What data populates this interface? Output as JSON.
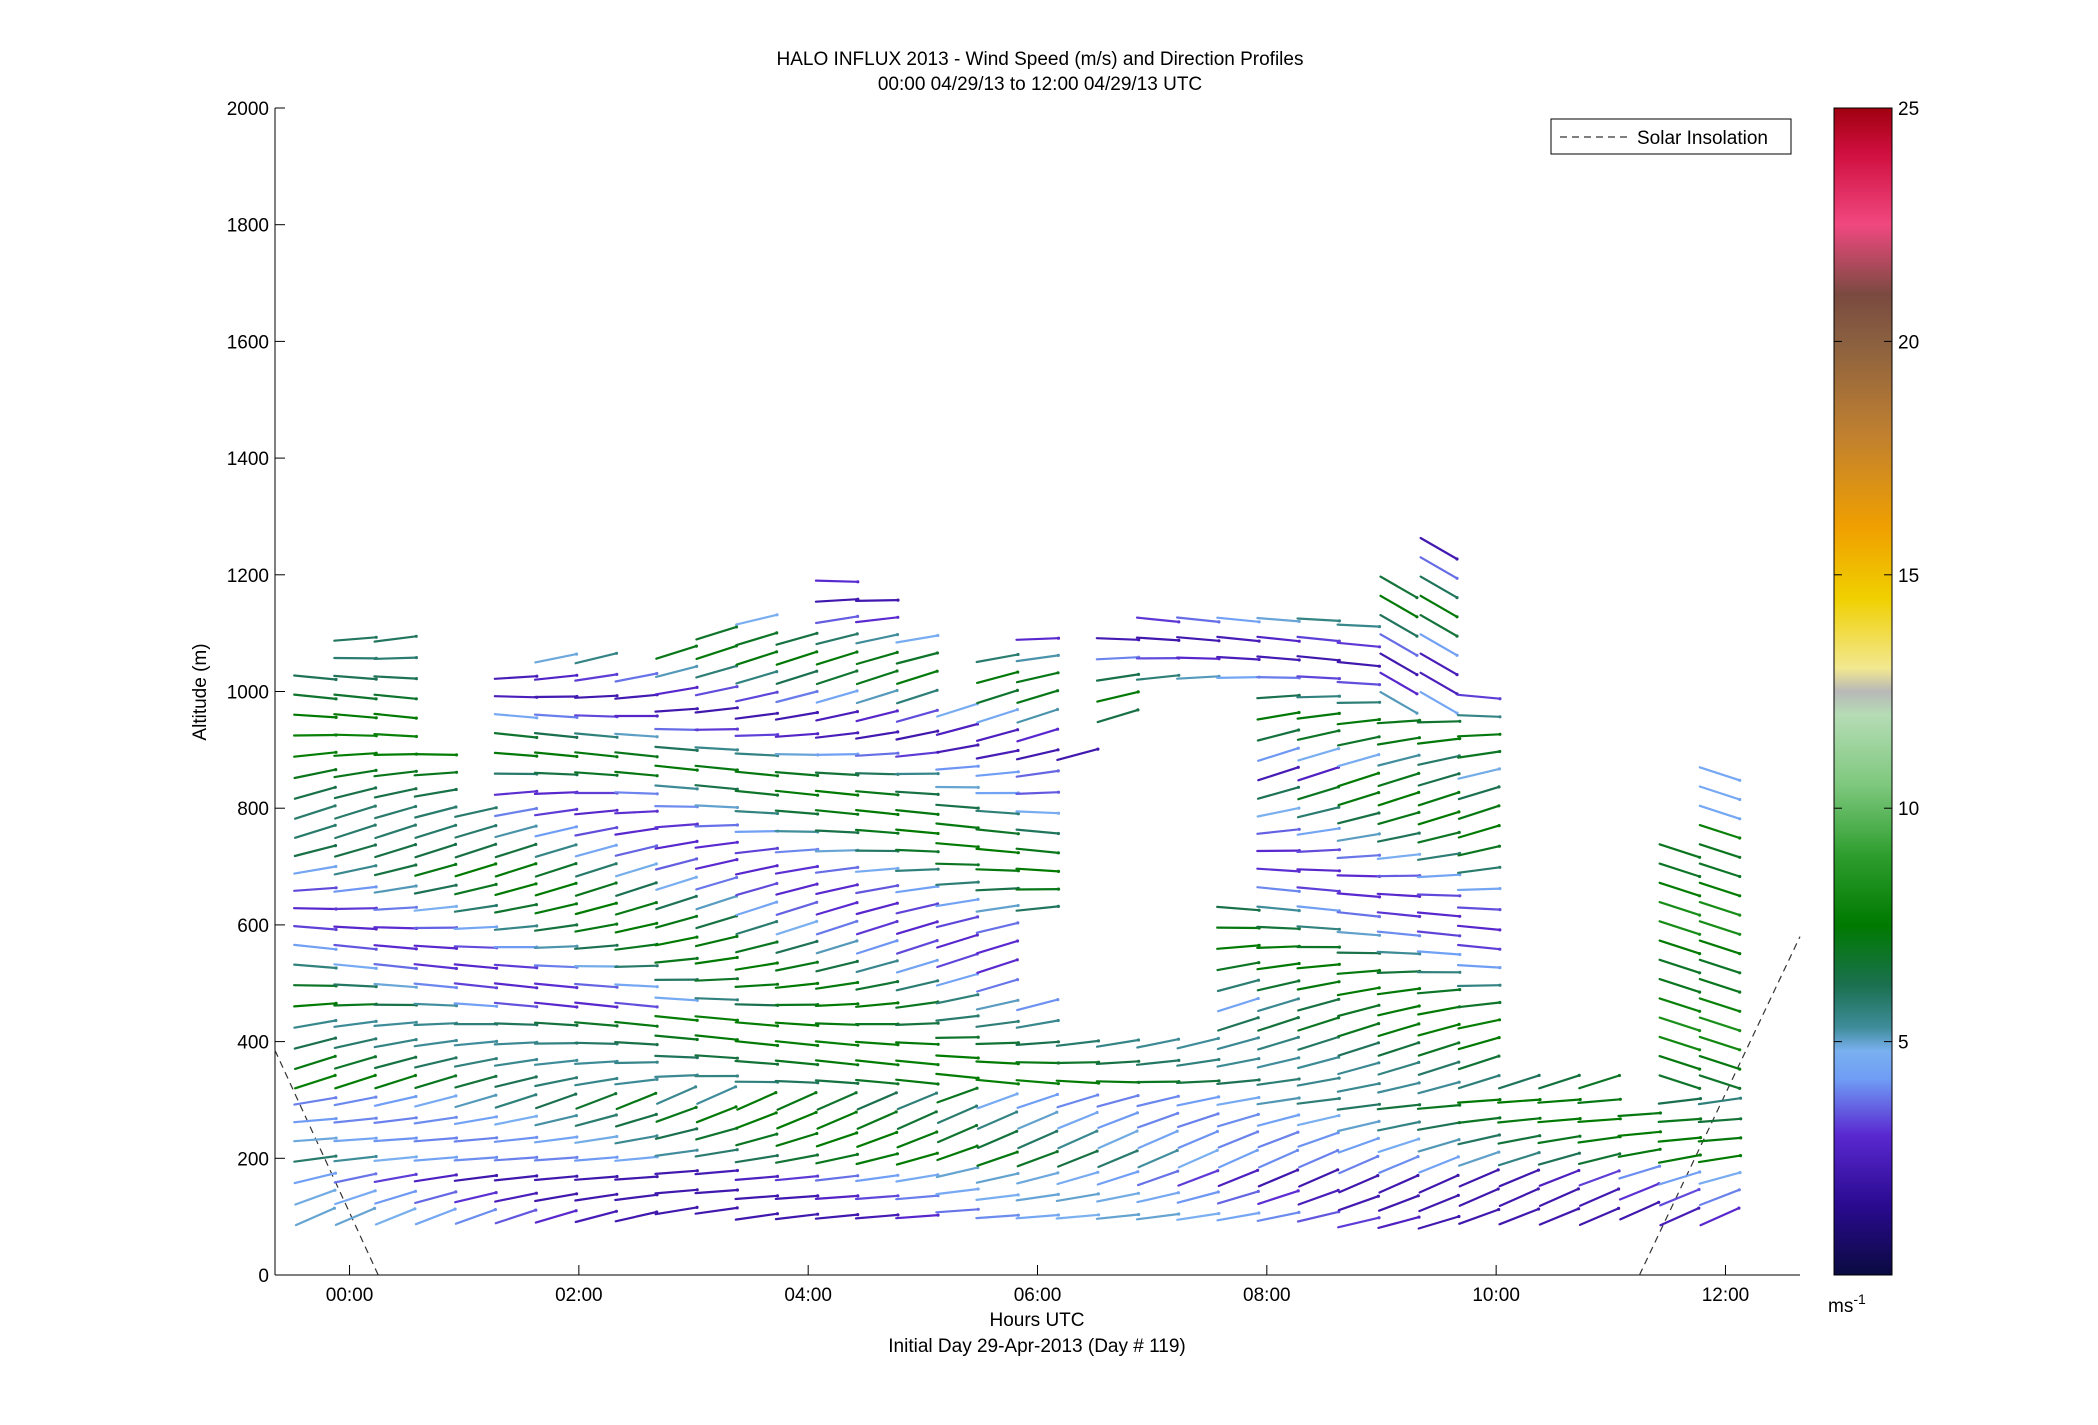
{
  "chart_data": {
    "type": "quiver",
    "title": "HALO INFLUX 2013 - Wind Speed (m/s) and Direction Profiles",
    "subtitle": "00:00 04/29/13 to 12:00 04/29/13  UTC",
    "xlabel": "Hours UTC",
    "xlabel2": "Initial Day 29-Apr-2013 (Day # 119)",
    "ylabel": "Altitude (m)",
    "xlim": [
      -0.65,
      12.65
    ],
    "ylim": [
      0,
      2000
    ],
    "x_ticks": [
      0,
      2,
      4,
      6,
      8,
      10,
      12
    ],
    "x_tick_labels": [
      "00:00",
      "02:00",
      "04:00",
      "06:00",
      "08:00",
      "10:00",
      "12:00"
    ],
    "y_ticks": [
      0,
      200,
      400,
      600,
      800,
      1000,
      1200,
      1400,
      1600,
      1800,
      2000
    ],
    "y_tick_labels": [
      "0",
      "200",
      "400",
      "600",
      "800",
      "1000",
      "1200",
      "1400",
      "1600",
      "1800",
      "2000"
    ],
    "legend": {
      "label": "Solar Insolation",
      "position": "top-right"
    },
    "solar_insolation": {
      "segments": [
        {
          "x": [
            -0.65,
            0.25
          ],
          "y": [
            385,
            0
          ]
        },
        {
          "x": [
            11.25,
            12.65
          ],
          "y": [
            0,
            580
          ]
        }
      ]
    },
    "colorbar": {
      "ticks": [
        5,
        10,
        15,
        20,
        25
      ],
      "tick_labels": [
        "5",
        "10",
        "15",
        "20",
        "25"
      ],
      "range": [
        0,
        25
      ],
      "unit_base": "ms",
      "unit_exp": "-1",
      "stops": [
        {
          "v": 0,
          "c": "#0a0a40"
        },
        {
          "v": 1.5,
          "c": "#2a0a90"
        },
        {
          "v": 3,
          "c": "#5a28d0"
        },
        {
          "v": 4.2,
          "c": "#6f9df5"
        },
        {
          "v": 4.8,
          "c": "#7ab0f0"
        },
        {
          "v": 5.3,
          "c": "#3f8c9a"
        },
        {
          "v": 6.2,
          "c": "#1b7050"
        },
        {
          "v": 7.5,
          "c": "#007a00"
        },
        {
          "v": 9,
          "c": "#2e9e2e"
        },
        {
          "v": 10.5,
          "c": "#7ec87e"
        },
        {
          "v": 12,
          "c": "#b5dcb5"
        },
        {
          "v": 12.5,
          "c": "#b8b8b8"
        },
        {
          "v": 13,
          "c": "#f2e890"
        },
        {
          "v": 14.5,
          "c": "#f0d000"
        },
        {
          "v": 16,
          "c": "#f0a000"
        },
        {
          "v": 18,
          "c": "#c08030"
        },
        {
          "v": 20,
          "c": "#8a6040"
        },
        {
          "v": 21,
          "c": "#7a4a40"
        },
        {
          "v": 22.5,
          "c": "#f04880"
        },
        {
          "v": 24,
          "c": "#d01040"
        },
        {
          "v": 25,
          "c": "#a00010"
        }
      ]
    },
    "profiles": [
      {
        "t": -0.3,
        "alt": [
          100,
          1050
        ],
        "vmin": 3
      },
      {
        "t": 0.05,
        "alt": [
          100,
          1100
        ],
        "vmin": 3
      },
      {
        "t": 0.4,
        "alt": [
          100,
          1100
        ],
        "vmin": 3
      },
      {
        "t": 0.75,
        "alt": [
          100,
          900
        ],
        "vmin": 3
      },
      {
        "t": 1.1,
        "alt": [
          100,
          800
        ],
        "vmin": 3
      },
      {
        "t": 1.45,
        "alt": [
          100,
          1030
        ],
        "vmin": 3
      },
      {
        "t": 1.8,
        "alt": [
          100,
          1060
        ],
        "vmin": 3
      },
      {
        "t": 2.15,
        "alt": [
          100,
          1060
        ],
        "vmin": 3
      },
      {
        "t": 2.5,
        "alt": [
          100,
          1050
        ],
        "vmin": 3
      },
      {
        "t": 2.85,
        "alt": [
          110,
          1090
        ],
        "vmin": 3
      },
      {
        "t": 3.2,
        "alt": [
          110,
          1100
        ],
        "vmin": 3
      },
      {
        "t": 3.55,
        "alt": [
          100,
          1130
        ],
        "vmin": 3
      },
      {
        "t": 3.9,
        "alt": [
          100,
          1090
        ],
        "vmin": 3
      },
      {
        "t": 4.25,
        "alt": [
          100,
          1200
        ],
        "vmin": 3
      },
      {
        "t": 4.6,
        "alt": [
          100,
          1170
        ],
        "vmin": 3
      },
      {
        "t": 4.95,
        "alt": [
          100,
          1120
        ],
        "vmin": 3
      },
      {
        "t": 5.3,
        "alt": [
          110,
          990
        ],
        "vmin": 3
      },
      {
        "t": 5.65,
        "alt": [
          100,
          1060
        ],
        "vmin": 3
      },
      {
        "t": 6.0,
        "alt": [
          100,
          1090
        ],
        "vmin": 3
      },
      {
        "t": 6.35,
        "alt": [
          100,
          900
        ],
        "vmin": 3
      },
      {
        "t": 6.7,
        "alt": [
          100,
          1100
        ],
        "vmin": 3
      },
      {
        "t": 7.05,
        "alt": [
          100,
          1130
        ],
        "vmin": 3
      },
      {
        "t": 7.4,
        "alt": [
          100,
          1130
        ],
        "vmin": 3
      },
      {
        "t": 7.75,
        "alt": [
          100,
          1130
        ],
        "vmin": 3
      },
      {
        "t": 8.1,
        "alt": [
          100,
          1140
        ],
        "vmin": 3
      },
      {
        "t": 8.45,
        "alt": [
          100,
          1150
        ],
        "vmin": 3
      },
      {
        "t": 8.8,
        "alt": [
          90,
          1140
        ],
        "vmin": 3
      },
      {
        "t": 9.15,
        "alt": [
          90,
          1200
        ],
        "vmin": 3
      },
      {
        "t": 9.5,
        "alt": [
          90,
          1250
        ],
        "vmin": 3
      },
      {
        "t": 9.85,
        "alt": [
          100,
          1010
        ],
        "vmin": 3
      },
      {
        "t": 10.2,
        "alt": [
          100,
          360
        ],
        "vmin": 3
      },
      {
        "t": 10.55,
        "alt": [
          100,
          340
        ],
        "vmin": 3
      },
      {
        "t": 10.9,
        "alt": [
          100,
          340
        ],
        "vmin": 3
      },
      {
        "t": 11.25,
        "alt": [
          110,
          280
        ],
        "vmin": 3
      },
      {
        "t": 11.6,
        "alt": [
          100,
          730
        ],
        "vmin": 3
      },
      {
        "t": 11.95,
        "alt": [
          100,
          870
        ],
        "vmin": 3
      }
    ],
    "gaps": [
      {
        "t": 6.35,
        "from": 400,
        "to": 880
      },
      {
        "t": 6.7,
        "from": 400,
        "to": 940
      },
      {
        "t": 7.05,
        "from": 400,
        "to": 1010
      },
      {
        "t": 7.4,
        "from": 400,
        "to": 1000
      },
      {
        "t": 7.75,
        "from": 630,
        "to": 1000
      },
      {
        "t": 6.0,
        "from": 480,
        "to": 600
      }
    ]
  }
}
